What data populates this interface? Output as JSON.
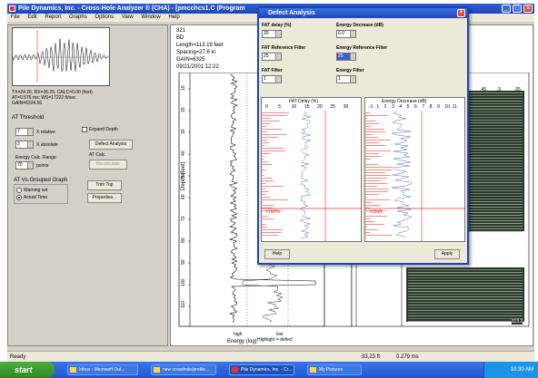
{
  "window": {
    "title": "Pile Dynamics, Inc. - Cross-Hole Analyzer ® (CHA) - [pmcchcs1.C (Program",
    "menu": [
      "File",
      "Edit",
      "Report",
      "Graphs",
      "Options",
      "View",
      "Window",
      "Help"
    ]
  },
  "left_panel": {
    "readout_line1": "TX=24.26, RX=26.25, CALC=0.00 (feet)",
    "readout_line2": "AT=0.576 ms; WS=17222 ft/sec",
    "readout_line3": "GAIN=6324.56",
    "at_threshold_label": "AT Threshold",
    "relative_value": "7",
    "relative_label": "X relative",
    "absolute_value": "3",
    "absolute_label": "X absolute",
    "expand_depth_label": "Expand Depth",
    "defect_analysis_button": "Defect Analysis",
    "at_calc_label": "AT Calc.",
    "recalculate_button": "Recalculate",
    "energy_calc_label": "Energy Calc. Range",
    "energy_calc_value": "70",
    "energy_calc_units": "points",
    "at_vs_group_label": "AT Vs.Grouped Graph",
    "radio_warning": "Warning set",
    "radio_actual": "Actual Time",
    "trim_top_button": "Trim Top",
    "properties_button": "Properties..."
  },
  "info": {
    "id": "321",
    "code": "BD",
    "length": "Length=113.19 feet",
    "spacing": "Spacing=27.6 in",
    "gain": "GAIN=6325",
    "date": "09/21/2001 12:22"
  },
  "plot": {
    "depth_label": "Depth (feet)",
    "depth_ticks": [
      "10",
      "20",
      "30",
      "40",
      "50",
      "60",
      "70",
      "80",
      "90",
      "100",
      "110"
    ],
    "energy_label": "Energy (log)",
    "energy_high": "high",
    "energy_low": "low",
    "footer_text": "Highlight = defect",
    "right_axis_ticks": [
      ".45",
      ".5",
      ".55"
    ],
    "ms_label": "ms",
    "right_axis_value": "113.2"
  },
  "dialog": {
    "title": "Defect Analysis",
    "fat_delay_label": "FAT delay (%)",
    "fat_delay_value": "20",
    "energy_decrease_label": "Energy Decrease (dB)",
    "energy_decrease_value": "6.0",
    "fat_ref_filter_label": "FAT Reference Filter",
    "fat_ref_filter_value": "25",
    "energy_ref_filter_label": "Energy Reference Filter",
    "energy_ref_filter_value": "25",
    "fat_filter_label": "FAT Filter",
    "fat_filter_value": "1",
    "energy_filter_label": "Energy Filter",
    "energy_filter_value": "1",
    "fat_plot_title": "FAT Delay (%)",
    "fat_plot_ticks": [
      "0",
      "5",
      "10",
      "15",
      "20",
      "25",
      "30"
    ],
    "energy_plot_title": "Energy Decrease (dB)",
    "energy_plot_ticks": [
      "-1",
      "1",
      "2",
      "3",
      "4",
      "5",
      "6",
      "7",
      "8",
      "9",
      "10",
      "11"
    ],
    "fat_marker": ">160%",
    "energy_marker": ">28dB",
    "help_button": "Help",
    "apply_button": "Apply"
  },
  "statusbar": {
    "left": "Ready",
    "coords": "93,23 ft",
    "time_value": "0.279 ms"
  },
  "taskbar": {
    "start": "start",
    "tasks": [
      "Inbox - Microsoft Out...",
      "new crosshole/profile...",
      "Pile Dynamics, Inc. - Cr...",
      "My Pictures"
    ],
    "clock": "10:30 AM"
  },
  "colors": {
    "xp_blue": "#1c46b8",
    "defect_red": "#e23232",
    "start_green": "#3a9c30"
  }
}
